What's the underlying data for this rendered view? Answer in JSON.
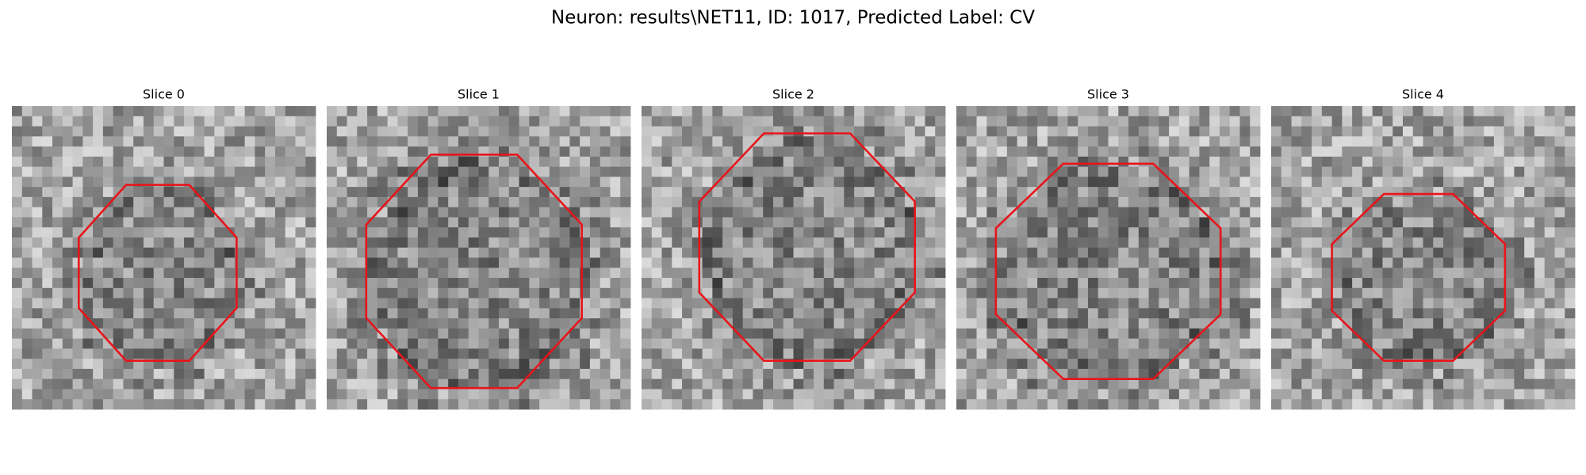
{
  "title": "Neuron: results\\NET11, ID: 1017, Predicted Label: CV",
  "panels": [
    {
      "title": "Slice 0"
    },
    {
      "title": "Slice 1"
    },
    {
      "title": "Slice 2"
    },
    {
      "title": "Slice 3"
    },
    {
      "title": "Slice 4"
    }
  ]
}
